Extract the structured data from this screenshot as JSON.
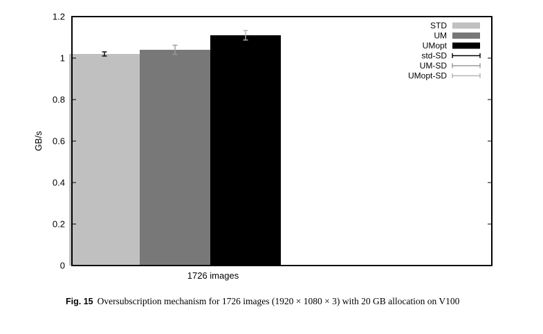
{
  "chart_data": {
    "type": "bar",
    "categories": [
      "1726 images"
    ],
    "series": [
      {
        "name": "STD",
        "values": [
          1.02
        ],
        "error": [
          0.01
        ],
        "color": "#c0c0c0",
        "err_color": "#000000"
      },
      {
        "name": "UM",
        "values": [
          1.04
        ],
        "error": [
          0.022
        ],
        "color": "#787878",
        "err_color": "#9a9a9a"
      },
      {
        "name": "UMopt",
        "values": [
          1.11
        ],
        "error": [
          0.023
        ],
        "color": "#000000",
        "err_color": "#b4b4b4"
      }
    ],
    "error_legend": [
      {
        "name": "std-SD",
        "color": "#000000"
      },
      {
        "name": "UM-SD",
        "color": "#9a9a9a"
      },
      {
        "name": "UMopt-SD",
        "color": "#b4b4b4"
      }
    ],
    "title": "",
    "xlabel": "",
    "ylabel": "GB/s",
    "ylim": [
      0,
      1.2
    ],
    "yticks": [
      0,
      0.2,
      0.4,
      0.6,
      0.8,
      1,
      1.2
    ],
    "ytick_labels": [
      "0",
      "0.2",
      "0.4",
      "0.6",
      "0.8",
      "1",
      "1.2"
    ],
    "grid": false,
    "legend_position": "top-right"
  },
  "caption": {
    "label": "Fig. 15",
    "text": "Oversubscription mechanism for 1726 images (1920 × 1080 × 3) with 20 GB allocation on V100"
  }
}
